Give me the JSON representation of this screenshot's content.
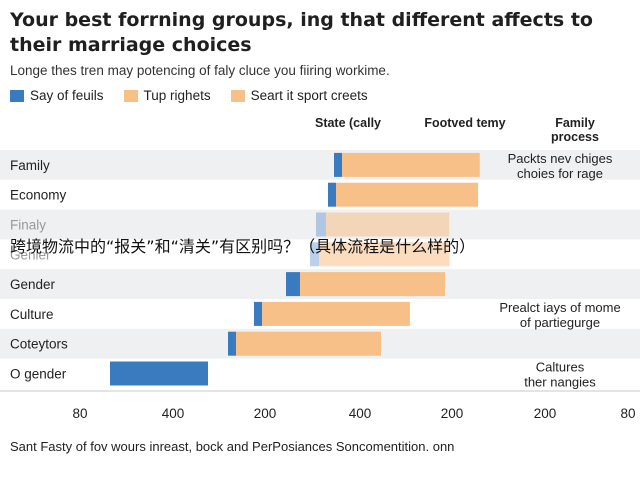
{
  "title": "Your best forrning groups, ing that different affects to their marriage choices",
  "subtitle": "Longe thes tren may potencing of faly cluce you fiiring workime.",
  "legend": [
    {
      "label": "Say of feuils",
      "color": "#3a7bbf"
    },
    {
      "label": "Tup righets",
      "color": "#f8c089"
    },
    {
      "label": "Seart it sport creets",
      "color": "#f8c089"
    }
  ],
  "column_headers": [
    "State (cally",
    "Footved temy",
    "Family process"
  ],
  "overlay_text": "跨境物流中的“报关”和“清关”有区别吗？（具体流程是什么样的）",
  "source": "Sant Fasty of fov wours inreast, bock and PerPosiances Soncomentition. onn",
  "chart_data": {
    "type": "bar",
    "title": "",
    "xlabel": "",
    "ylabel": "",
    "xtick_labels": [
      "80",
      "400",
      "200",
      "400",
      "200",
      "200",
      "80"
    ],
    "categories": [
      "Family",
      "Economy",
      "Finaly",
      "Genler",
      "Gender",
      "Culture",
      "Coteytors",
      "O gender"
    ],
    "series": [
      {
        "name": "Say of feuils",
        "color": "#3a7bbf",
        "values": [
          6,
          6,
          8,
          7,
          12,
          6,
          6,
          70
        ],
        "opacity": [
          1,
          1,
          0.35,
          0.35,
          1,
          1,
          1,
          1
        ]
      },
      {
        "name": "Tup righets",
        "color": "#f8c089",
        "values": [
          95,
          98,
          85,
          90,
          100,
          102,
          100,
          0
        ],
        "opacity": [
          1,
          1,
          0.55,
          0.55,
          1,
          1,
          1,
          1
        ]
      }
    ],
    "bar_start": [
      334,
      328,
      316,
      310,
      286,
      254,
      228,
      0
    ],
    "annotations": [
      {
        "row": 0,
        "lines": [
          "Packts nev chiges",
          "choies for rage"
        ]
      },
      {
        "row": 5,
        "lines": [
          "Prealct iays of mome",
          "of partiegurge"
        ]
      },
      {
        "row": 7,
        "lines": [
          "Caltures",
          "ther nangies"
        ]
      }
    ]
  }
}
